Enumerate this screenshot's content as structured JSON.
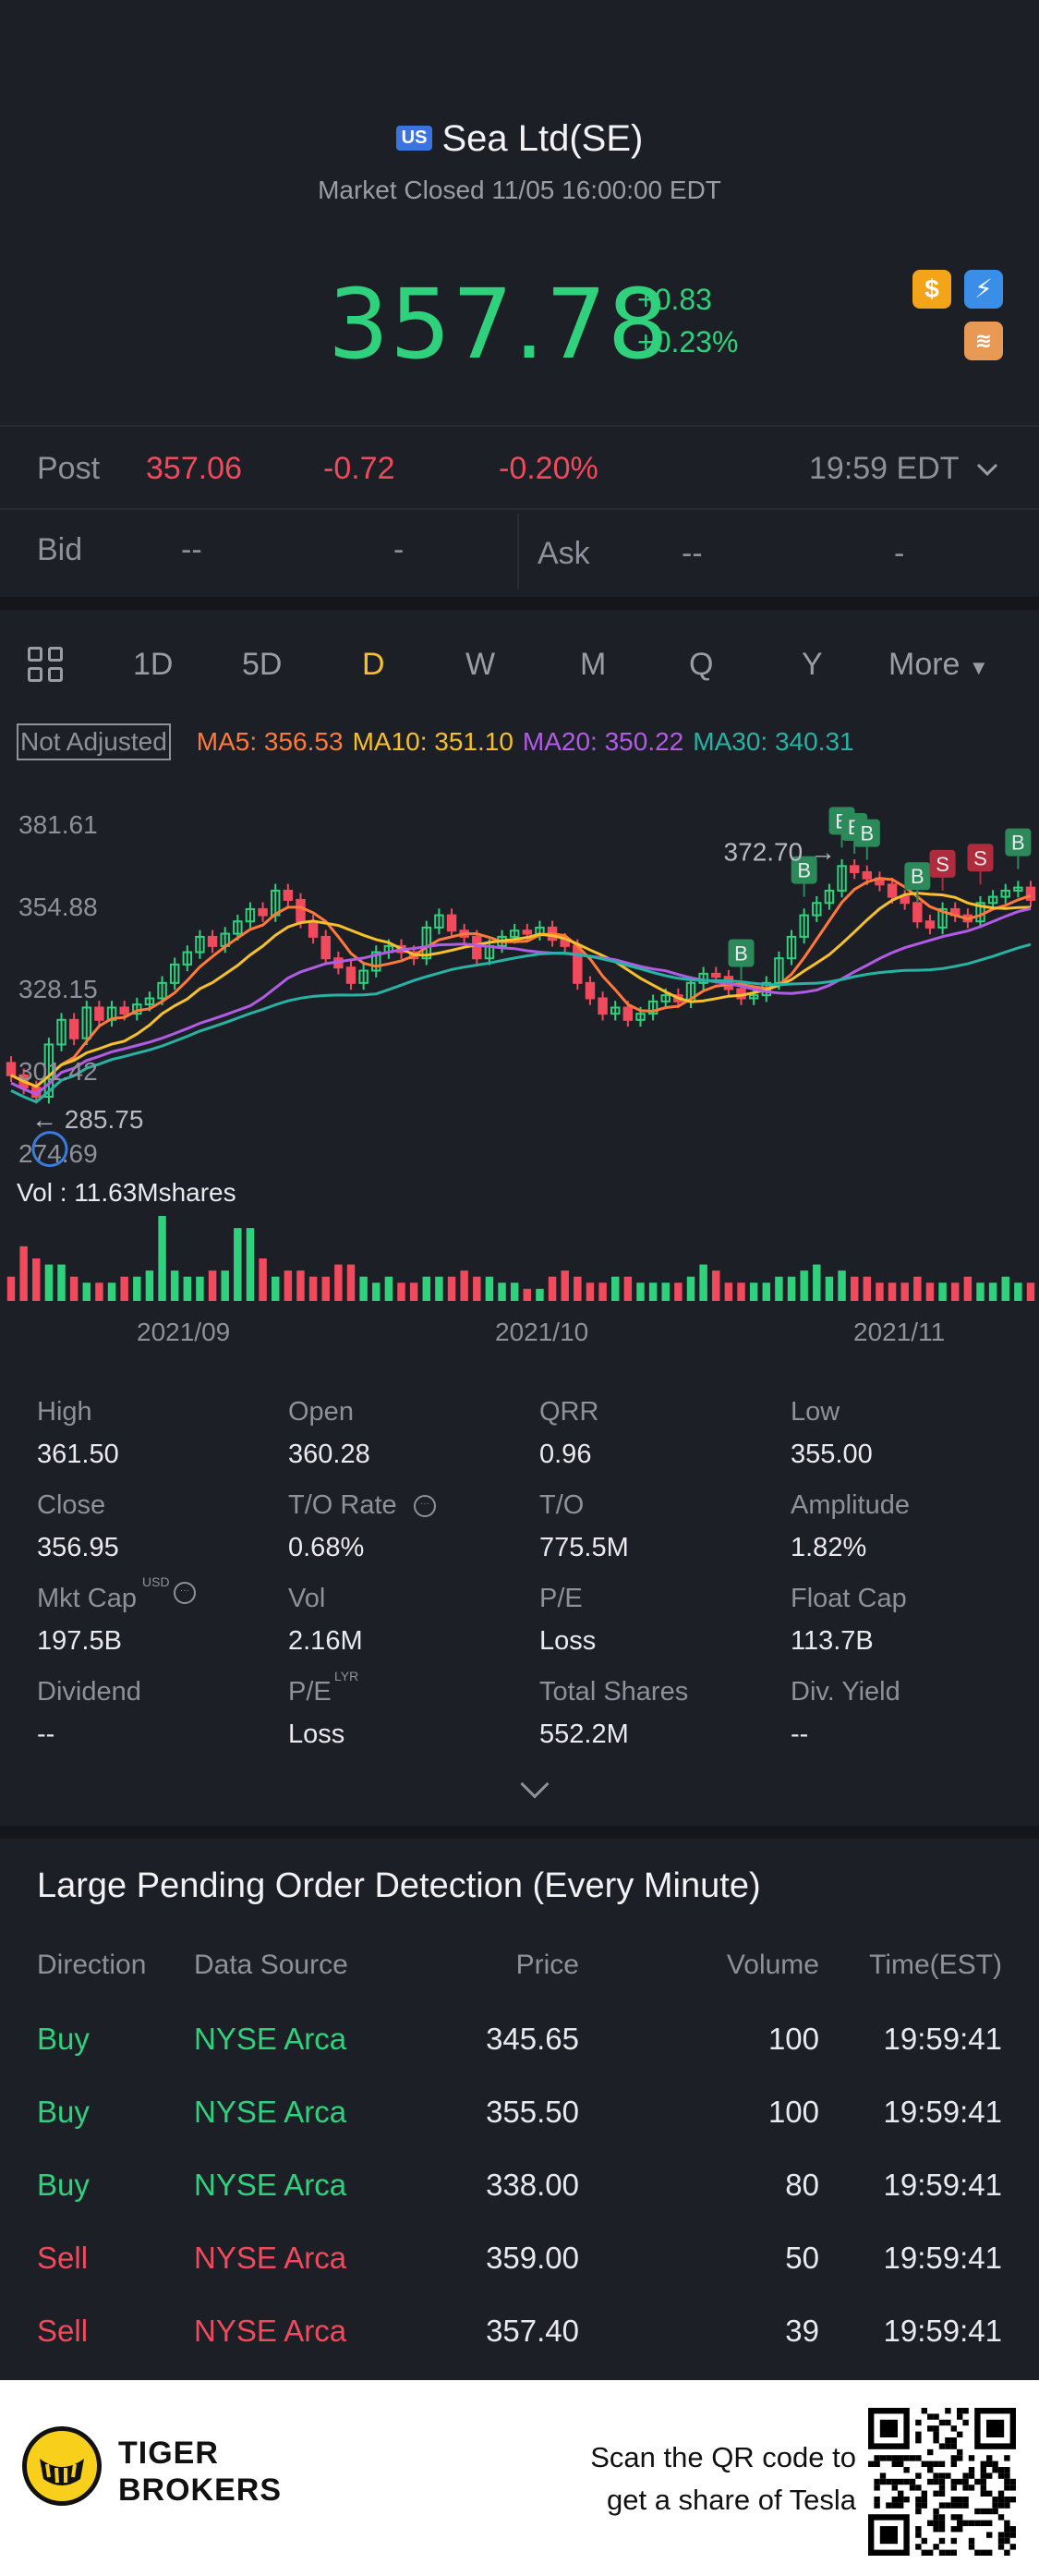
{
  "header": {
    "market_flag": "US",
    "title": "Sea Ltd(SE)",
    "status": "Market Closed 11/05 16:00:00 EDT",
    "price": "357.78",
    "change": "+0.83",
    "change_pct": "+0.23%",
    "icons": [
      "dollar-icon",
      "lightning-icon",
      "layers-icon"
    ]
  },
  "post": {
    "label": "Post",
    "price": "357.06",
    "change": "-0.72",
    "change_pct": "-0.20%",
    "time": "19:59 EDT"
  },
  "bidask": {
    "bid_label": "Bid",
    "bid_price": "--",
    "bid_size": "-",
    "ask_label": "Ask",
    "ask_price": "--",
    "ask_size": "-"
  },
  "tabs": {
    "items": [
      "1D",
      "5D",
      "D",
      "W",
      "M",
      "Q",
      "Y"
    ],
    "active": "D",
    "more": "More"
  },
  "ma": {
    "adjust": "Not Adjusted",
    "ma5": "MA5: 356.53",
    "ma10": "MA10: 351.10",
    "ma20": "MA20: 350.22",
    "ma30": "MA30: 340.31",
    "colors": {
      "ma5": "#ff7a3a",
      "ma10": "#f5c02b",
      "ma20": "#b25ce6",
      "ma30": "#27b3a4"
    }
  },
  "chart_data": {
    "type": "candlestick",
    "y_ticks": [
      "381.61",
      "354.88",
      "328.15",
      "301.42",
      "274.69"
    ],
    "ylim": [
      274.69,
      381.61
    ],
    "high_annotation": "372.70",
    "low_annotation": "285.75",
    "volume_label": "Vol",
    "volume_value": ": 11.63Mshares",
    "x_ticks": [
      "2021/09",
      "2021/10",
      "2021/11"
    ],
    "closes": [
      300,
      296,
      293,
      310,
      318,
      312,
      322,
      318,
      322,
      320,
      323,
      325,
      330,
      336,
      340,
      345,
      342,
      346,
      350,
      354,
      352,
      360,
      357,
      350,
      345,
      338,
      335,
      330,
      334,
      340,
      342,
      340,
      338,
      348,
      352,
      347,
      345,
      338,
      342,
      345,
      347,
      346,
      348,
      344,
      342,
      330,
      325,
      320,
      322,
      318,
      320,
      324,
      326,
      324,
      330,
      333,
      332,
      328,
      325,
      326,
      330,
      338,
      345,
      352,
      356,
      360,
      368,
      366,
      364,
      362,
      358,
      356,
      350,
      348,
      354,
      352,
      350,
      356,
      358,
      360,
      361,
      357
    ],
    "volume": [
      4,
      9,
      7,
      6,
      6,
      4,
      3,
      3,
      3,
      4,
      4,
      5,
      14,
      5,
      4,
      4,
      5,
      5,
      12,
      12,
      7,
      4,
      5,
      5,
      4,
      4,
      6,
      6,
      4,
      3,
      4,
      3,
      3,
      4,
      4,
      4,
      5,
      4,
      4,
      3,
      3,
      2,
      2,
      4,
      5,
      4,
      3,
      3,
      4,
      4,
      3,
      3,
      3,
      3,
      4,
      6,
      5,
      3,
      3,
      3,
      3,
      4,
      4,
      5,
      6,
      4,
      5,
      4,
      4,
      3,
      3,
      3,
      4,
      3,
      3,
      3,
      4,
      3,
      3,
      4,
      3,
      3
    ],
    "trade_marks": [
      {
        "label": "B",
        "type": "buy",
        "index": 58
      },
      {
        "label": "B",
        "type": "buy",
        "index": 63
      },
      {
        "label": "B",
        "type": "buy",
        "index": 66
      },
      {
        "label": "B",
        "type": "buy",
        "index": 67
      },
      {
        "label": "B",
        "type": "buy",
        "index": 68
      },
      {
        "label": "B",
        "type": "buy",
        "index": 72
      },
      {
        "label": "S",
        "type": "sell",
        "index": 74
      },
      {
        "label": "S",
        "type": "sell",
        "index": 77
      },
      {
        "label": "B",
        "type": "buy",
        "index": 80
      }
    ]
  },
  "stats": [
    {
      "label": "High",
      "value": "361.50"
    },
    {
      "label": "Open",
      "value": "360.28"
    },
    {
      "label": "QRR",
      "value": "0.96"
    },
    {
      "label": "Low",
      "value": "355.00"
    },
    {
      "label": "Close",
      "value": "356.95"
    },
    {
      "label": "T/O Rate",
      "value": "0.68%"
    },
    {
      "label": "T/O",
      "value": "775.5M"
    },
    {
      "label": "Amplitude",
      "value": "1.82%"
    },
    {
      "label": "Mkt Cap",
      "value": "197.5B"
    },
    {
      "label": "Vol",
      "value": "2.16M"
    },
    {
      "label": "P/E",
      "value": "Loss"
    },
    {
      "label": "Float Cap",
      "value": "113.7B"
    },
    {
      "label": "Dividend",
      "value": "--"
    },
    {
      "label": "P/E",
      "value": "Loss"
    },
    {
      "label": "Total Shares",
      "value": "552.2M"
    },
    {
      "label": "Div. Yield",
      "value": "--"
    }
  ],
  "stat_superscripts": {
    "mkt_cap": "USD",
    "pe_lyr": "LYR"
  },
  "orders": {
    "title": "Large Pending Order Detection (Every Minute)",
    "headers": [
      "Direction",
      "Data Source",
      "Price",
      "Volume",
      "Time(EST)"
    ],
    "rows": [
      {
        "direction": "Buy",
        "source": "NYSE Arca",
        "price": "345.65",
        "volume": "100",
        "time": "19:59:41"
      },
      {
        "direction": "Buy",
        "source": "NYSE Arca",
        "price": "355.50",
        "volume": "100",
        "time": "19:59:41"
      },
      {
        "direction": "Buy",
        "source": "NYSE Arca",
        "price": "338.00",
        "volume": "80",
        "time": "19:59:41"
      },
      {
        "direction": "Sell",
        "source": "NYSE Arca",
        "price": "359.00",
        "volume": "50",
        "time": "19:59:41"
      },
      {
        "direction": "Sell",
        "source": "NYSE Arca",
        "price": "357.40",
        "volume": "39",
        "time": "19:59:41"
      }
    ]
  },
  "footer": {
    "brand_line1": "TIGER",
    "brand_line2": "BROKERS",
    "scan_line1": "Scan the QR code to",
    "scan_line2": "get a share of Tesla"
  }
}
